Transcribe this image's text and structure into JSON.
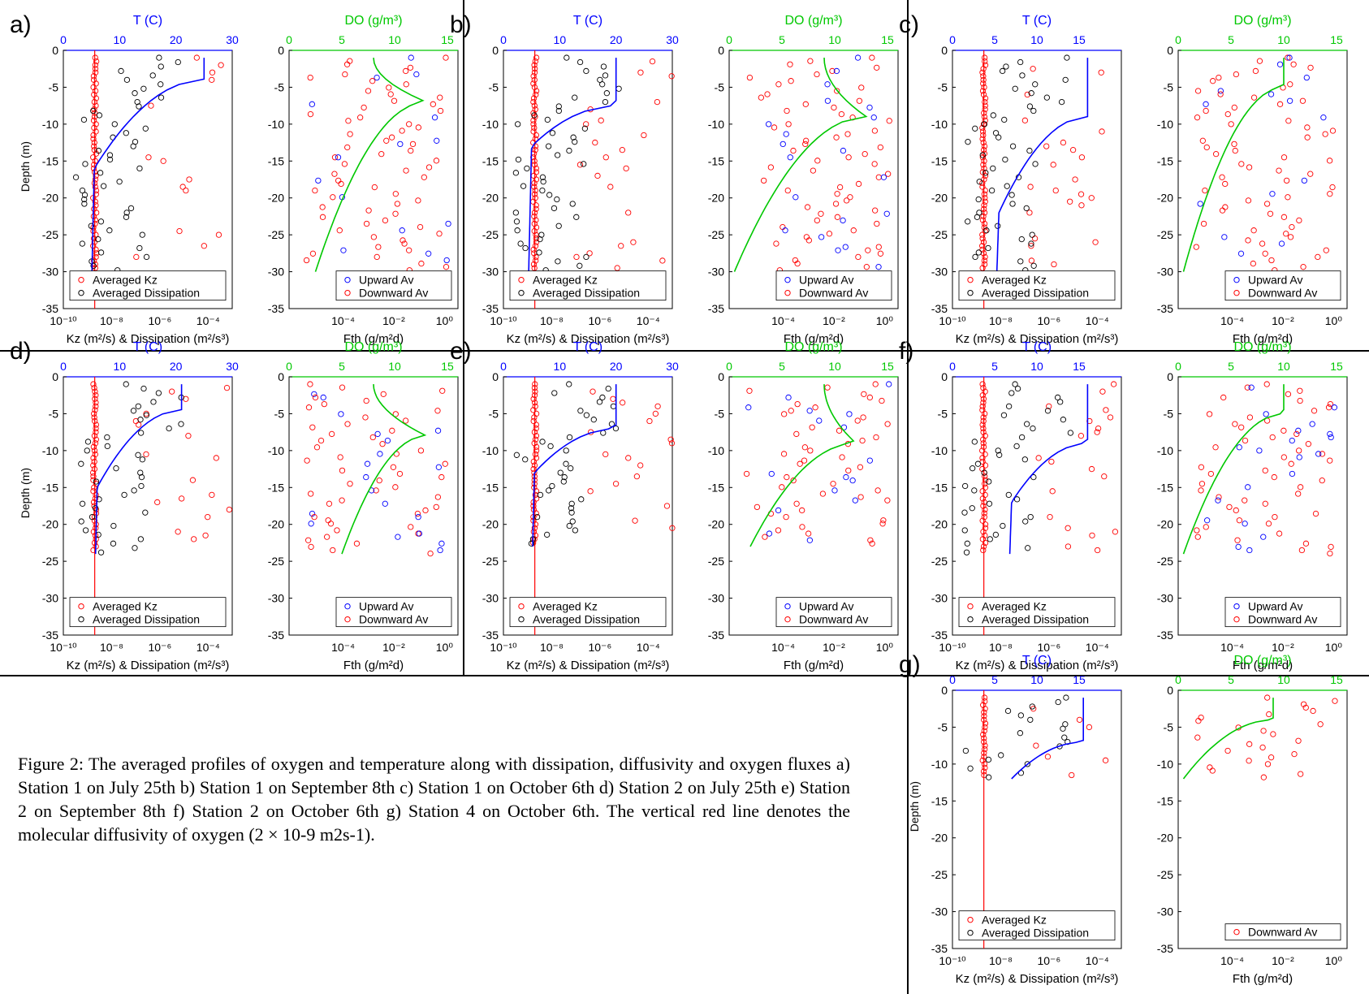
{
  "figure": {
    "caption": "Figure 2: The averaged profiles of oxygen and temperature along with dissipation, diffusivity and oxygen fluxes a) Station 1 on July 25th b) Station 1 on September 8th c) Station 1 on October 6th d) Station 2 on July 25th e) Station 2 on September 8th f) Station 2 on October 6th g) Station 4 on October 6th. The vertical red line denotes the molecular diffusivity of oxygen (2 × 10-9 m2s-1).",
    "common_labels": {
      "temp_top_label": "T (C)",
      "do_top_label": "DO (g/m³)",
      "left_xlabel": "Kz (m²/s) & Dissipation (m²/s³)",
      "right_xlabel": "Fth (g/m²d)",
      "ylabel": "Depth (m)",
      "legend_kz": "Averaged Kz",
      "legend_dissipation": "Averaged Dissipation",
      "legend_upward": "Upward Av",
      "legend_downward": "Downward Av"
    },
    "colors": {
      "temperature": "#0000ff",
      "dissipation": "#000000",
      "kz": "#ff0000",
      "oxygen": "#00c800",
      "upward": "#0000ff",
      "downward": "#ff0000",
      "molecular_line": "#ff0000"
    }
  },
  "chart_data": [
    {
      "panel": "a)",
      "type": "scatter",
      "temp_axis": [
        0,
        30
      ],
      "temp_ticks": [
        "0",
        "10",
        "20",
        "30"
      ],
      "do_axis": [
        0,
        16
      ],
      "do_ticks": [
        "0",
        "5",
        "10",
        "15"
      ],
      "log_axis": [
        -10,
        -3
      ],
      "log_ticks": [
        "10⁻¹⁰",
        "10⁻⁸",
        "10⁻⁶",
        "10⁻⁴"
      ],
      "depth_axis": [
        -35,
        0
      ],
      "depth_ticks": [
        "0",
        "-5",
        "-10",
        "-15",
        "-20",
        "-25",
        "-30",
        "-35"
      ],
      "max_depth": -30,
      "mixed_depth": -4,
      "thermocline_bottom": -16,
      "surface_temp": 25,
      "bottom_temp": 5.5,
      "surface_do": 8,
      "peak_do": 13,
      "peak_do_depth": -7,
      "bottom_do": 2.5,
      "show_upward": true,
      "show_ylabel": true
    },
    {
      "panel": "b)",
      "type": "scatter",
      "temp_axis": [
        0,
        30
      ],
      "temp_ticks": [
        "0",
        "10",
        "20",
        "30"
      ],
      "do_axis": [
        0,
        16
      ],
      "do_ticks": [
        "0",
        "5",
        "10",
        "15"
      ],
      "log_axis": [
        -10,
        -3
      ],
      "log_ticks": [
        "10⁻¹⁰",
        "10⁻⁸",
        "10⁻⁶",
        "10⁻⁴"
      ],
      "depth_axis": [
        -35,
        0
      ],
      "depth_ticks": [
        "0",
        "-5",
        "-10",
        "-15",
        "-20",
        "-25",
        "-30",
        "-35"
      ],
      "max_depth": -30,
      "mixed_depth": -7.5,
      "thermocline_bottom": -13,
      "surface_temp": 20,
      "bottom_temp": 5,
      "surface_do": 9,
      "peak_do": 13,
      "peak_do_depth": -9,
      "bottom_do": 0.5,
      "show_upward": true,
      "show_ylabel": false
    },
    {
      "panel": "c)",
      "type": "scatter",
      "temp_axis": [
        0,
        20
      ],
      "temp_ticks": [
        "0",
        "5",
        "10",
        "15"
      ],
      "do_axis": [
        0,
        16
      ],
      "do_ticks": [
        "0",
        "5",
        "10",
        "15"
      ],
      "log_axis": [
        -10,
        -3
      ],
      "log_ticks": [
        "10⁻¹⁰",
        "10⁻⁸",
        "10⁻⁶",
        "10⁻⁴"
      ],
      "depth_axis": [
        -35,
        0
      ],
      "depth_ticks": [
        "0",
        "-5",
        "-10",
        "-15",
        "-20",
        "-25",
        "-30",
        "-35"
      ],
      "max_depth": -30,
      "mixed_depth": -9,
      "thermocline_bottom": -22,
      "surface_temp": 16,
      "bottom_temp": 5.5,
      "surface_do": 10,
      "peak_do": 10,
      "peak_do_depth": -5,
      "bottom_do": 0.5,
      "show_upward": true,
      "show_ylabel": false
    },
    {
      "panel": "d)",
      "type": "scatter",
      "temp_axis": [
        0,
        30
      ],
      "temp_ticks": [
        "0",
        "10",
        "20",
        "30"
      ],
      "do_axis": [
        0,
        16
      ],
      "do_ticks": [
        "0",
        "5",
        "10",
        "15"
      ],
      "log_axis": [
        -10,
        -3
      ],
      "log_ticks": [
        "10⁻¹⁰",
        "10⁻⁸",
        "10⁻⁶",
        "10⁻⁴"
      ],
      "depth_axis": [
        -35,
        0
      ],
      "depth_ticks": [
        "0",
        "-5",
        "-10",
        "-15",
        "-20",
        "-25",
        "-30",
        "-35"
      ],
      "max_depth": -24,
      "mixed_depth": -4.5,
      "thermocline_bottom": -15,
      "surface_temp": 21,
      "bottom_temp": 6,
      "surface_do": 8,
      "peak_do": 13,
      "peak_do_depth": -8,
      "bottom_do": 5,
      "show_upward": true,
      "show_ylabel": true
    },
    {
      "panel": "e)",
      "type": "scatter",
      "temp_axis": [
        0,
        30
      ],
      "temp_ticks": [
        "0",
        "10",
        "20",
        "30"
      ],
      "do_axis": [
        0,
        16
      ],
      "do_ticks": [
        "0",
        "5",
        "10",
        "15"
      ],
      "log_axis": [
        -10,
        -3
      ],
      "log_ticks": [
        "10⁻¹⁰",
        "10⁻⁸",
        "10⁻⁶",
        "10⁻⁴"
      ],
      "depth_axis": [
        -35,
        0
      ],
      "depth_ticks": [
        "0",
        "-5",
        "-10",
        "-15",
        "-20",
        "-25",
        "-30",
        "-35"
      ],
      "max_depth": -23,
      "mixed_depth": -7,
      "thermocline_bottom": -13,
      "surface_temp": 20,
      "bottom_temp": 5.5,
      "surface_do": 9,
      "peak_do": 12,
      "peak_do_depth": -9,
      "bottom_do": 2,
      "show_upward": true,
      "show_ylabel": false
    },
    {
      "panel": "f)",
      "type": "scatter",
      "temp_axis": [
        0,
        20
      ],
      "temp_ticks": [
        "0",
        "5",
        "10",
        "15"
      ],
      "do_axis": [
        0,
        16
      ],
      "do_ticks": [
        "0",
        "5",
        "10",
        "15"
      ],
      "log_axis": [
        -10,
        -3
      ],
      "log_ticks": [
        "10⁻¹⁰",
        "10⁻⁸",
        "10⁻⁶",
        "10⁻⁴"
      ],
      "depth_axis": [
        -35,
        0
      ],
      "depth_ticks": [
        "0",
        "-5",
        "-10",
        "-15",
        "-20",
        "-25",
        "-30",
        "-35"
      ],
      "max_depth": -24,
      "mixed_depth": -9,
      "thermocline_bottom": -17,
      "surface_temp": 16,
      "bottom_temp": 7,
      "surface_do": 10,
      "peak_do": 10,
      "peak_do_depth": -5,
      "bottom_do": 0.5,
      "show_upward": true,
      "show_ylabel": false
    },
    {
      "panel": "g)",
      "type": "scatter",
      "temp_axis": [
        0,
        20
      ],
      "temp_ticks": [
        "0",
        "5",
        "10",
        "15"
      ],
      "do_axis": [
        0,
        16
      ],
      "do_ticks": [
        "0",
        "5",
        "10",
        "15"
      ],
      "log_axis": [
        -10,
        -3
      ],
      "log_ticks": [
        "10⁻¹⁰",
        "10⁻⁸",
        "10⁻⁶",
        "10⁻⁴"
      ],
      "depth_axis": [
        -35,
        0
      ],
      "depth_ticks": [
        "0",
        "-5",
        "-10",
        "-15",
        "-20",
        "-25",
        "-30",
        "-35"
      ],
      "max_depth": -12,
      "mixed_depth": -7,
      "thermocline_bottom": -12,
      "surface_temp": 15.5,
      "bottom_temp": 7,
      "surface_do": 9,
      "peak_do": 9,
      "peak_do_depth": -4,
      "bottom_do": 0.5,
      "show_upward": false,
      "show_ylabel": true
    }
  ]
}
